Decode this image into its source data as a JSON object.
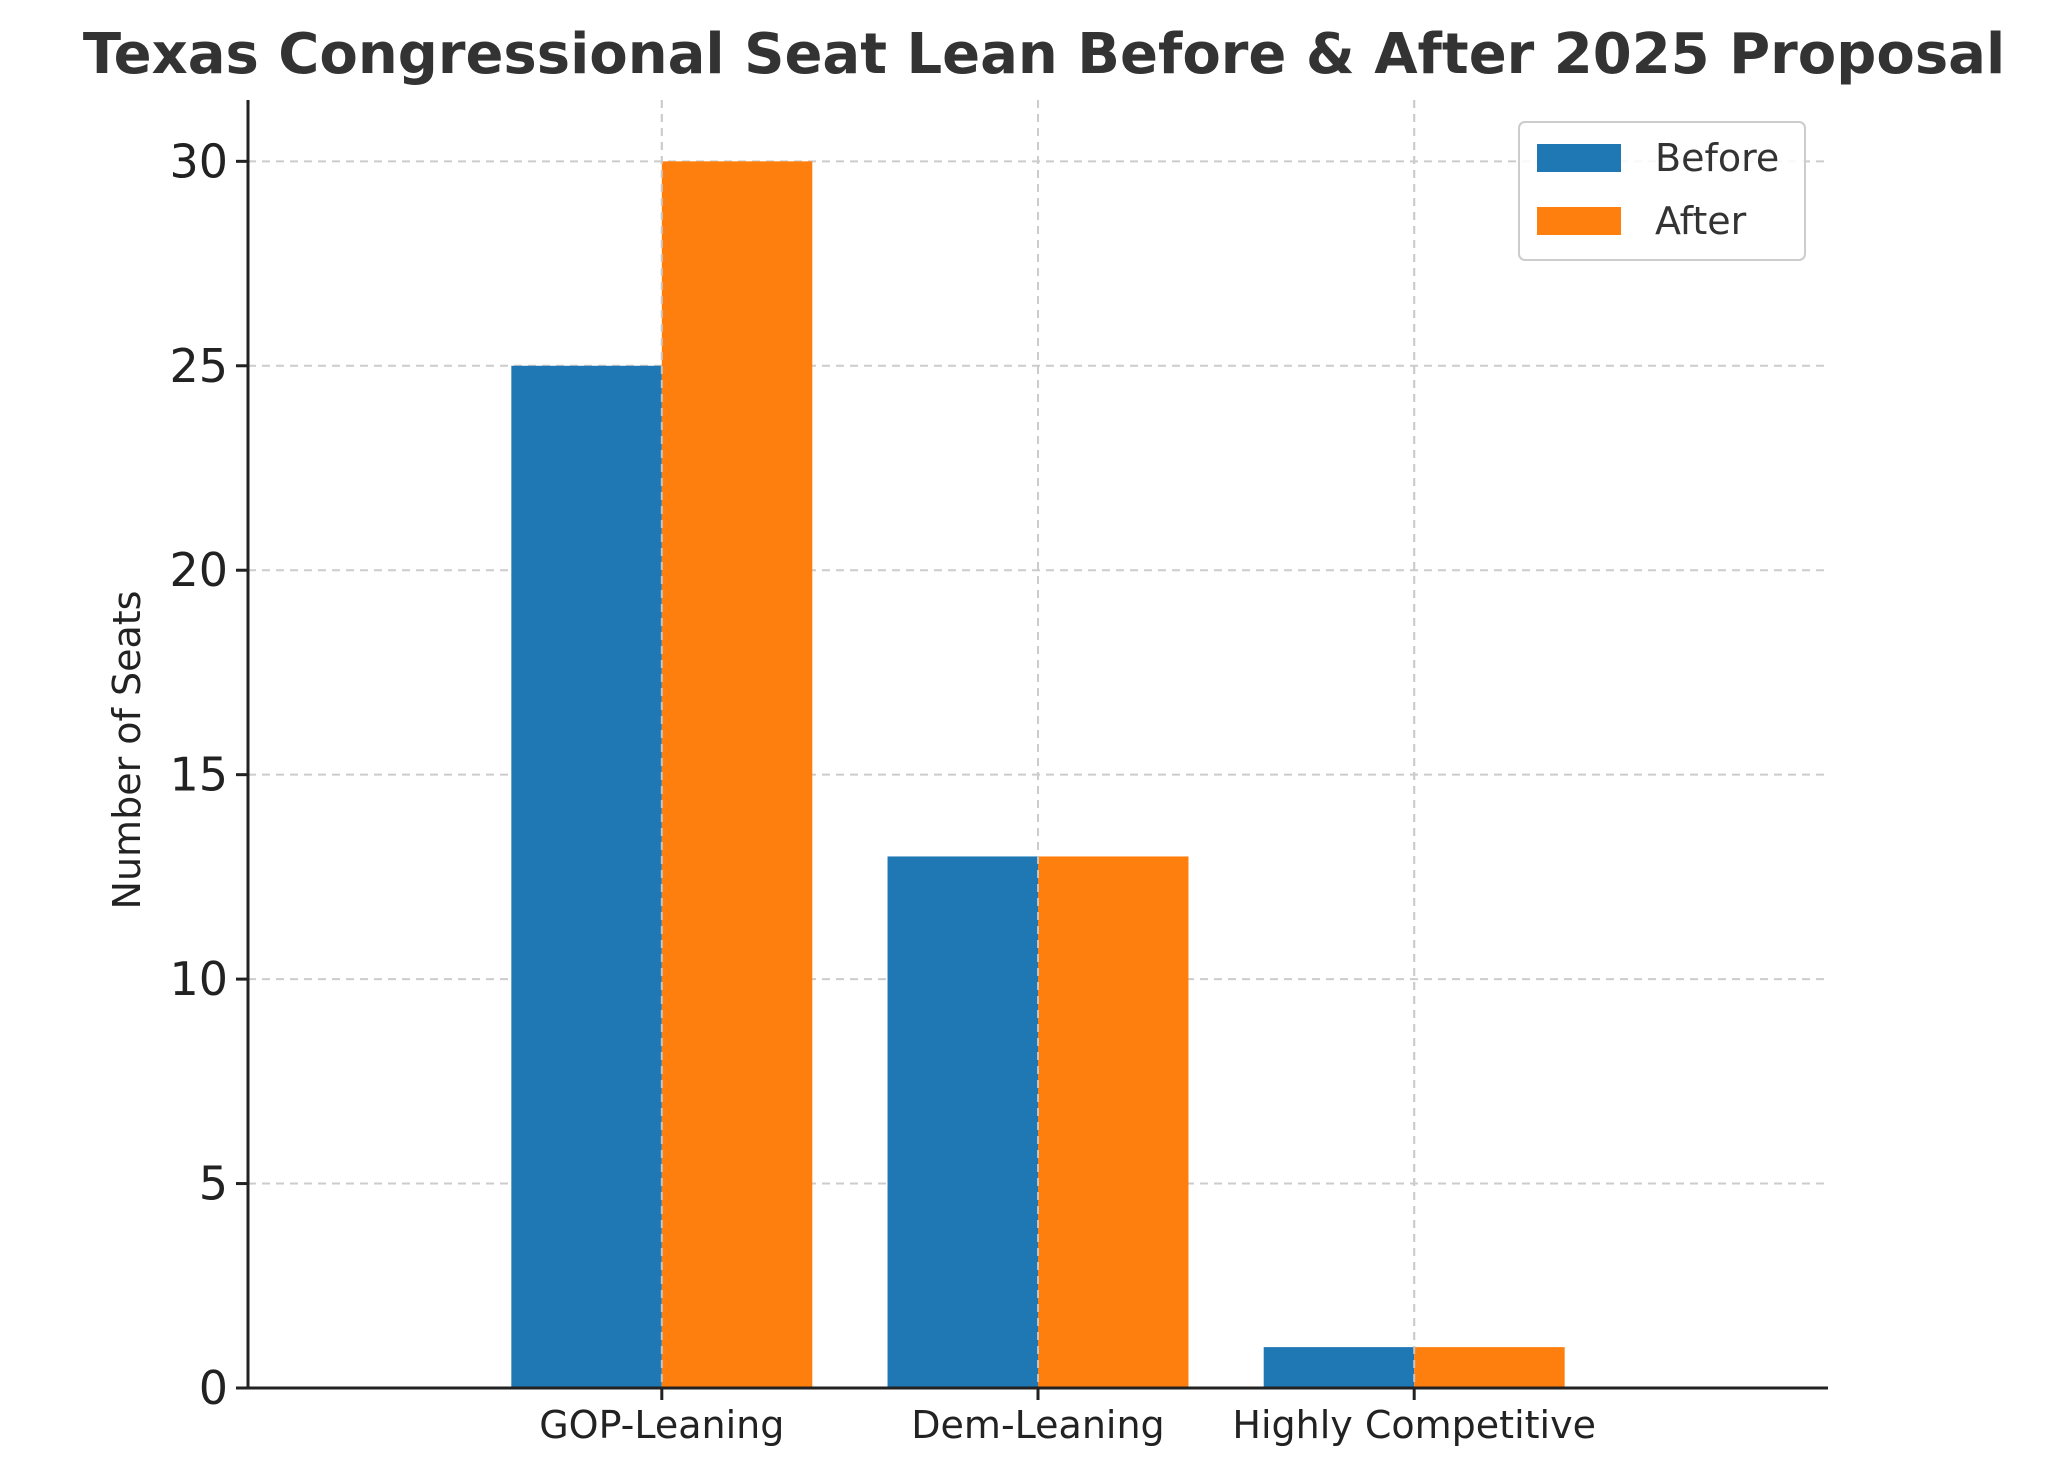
{
  "chart_data": {
    "type": "bar",
    "title": "Texas Congressional Seat Lean Before & After 2025 Proposal",
    "xlabel": "",
    "ylabel": "Number of Seats",
    "categories": [
      "GOP-Leaning",
      "Dem-Leaning",
      "Highly Competitive"
    ],
    "series": [
      {
        "name": "Before",
        "values": [
          25,
          13,
          1
        ],
        "color": "#1f77b4"
      },
      {
        "name": "After",
        "values": [
          30,
          13,
          1
        ],
        "color": "#ff7f0e"
      }
    ],
    "ylim": [
      0,
      31.5
    ],
    "yticks": [
      "0",
      "5",
      "10",
      "15",
      "20",
      "25",
      "30"
    ],
    "grid": true,
    "legend_position": "top-right"
  }
}
